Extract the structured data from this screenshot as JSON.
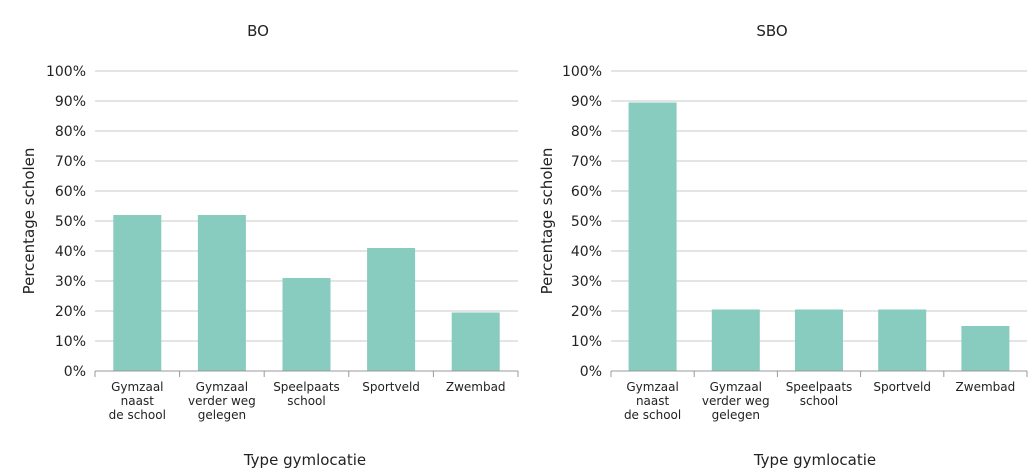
{
  "chart_data": [
    {
      "type": "bar",
      "title": "BO",
      "xlabel": "Type gymlocatie",
      "ylabel": "Percentage scholen",
      "ylim": [
        0,
        100
      ],
      "yticks": [
        "0%",
        "10%",
        "20%",
        "30%",
        "40%",
        "50%",
        "60%",
        "70%",
        "80%",
        "90%",
        "100%"
      ],
      "categories": [
        [
          "Gymzaal",
          "naast",
          "de school"
        ],
        [
          "Gymzaal",
          "verder weg",
          "gelegen"
        ],
        [
          "Speelpaats",
          "school"
        ],
        [
          "Sportveld"
        ],
        [
          "Zwembad"
        ]
      ],
      "values": [
        52,
        52,
        31,
        41,
        19.5
      ],
      "bar_color": "#88cbbf",
      "grid": true
    },
    {
      "type": "bar",
      "title": "SBO",
      "xlabel": "Type gymlocatie",
      "ylabel": "Percentage scholen",
      "ylim": [
        0,
        100
      ],
      "yticks": [
        "0%",
        "10%",
        "20%",
        "30%",
        "40%",
        "50%",
        "60%",
        "70%",
        "80%",
        "90%",
        "100%"
      ],
      "categories": [
        [
          "Gymzaal",
          "naast",
          "de school"
        ],
        [
          "Gymzaal",
          "verder weg",
          "gelegen"
        ],
        [
          "Speelpaats",
          "school"
        ],
        [
          "Sportveld"
        ],
        [
          "Zwembad"
        ]
      ],
      "values": [
        89.5,
        20.5,
        20.5,
        20.5,
        15
      ],
      "bar_color": "#88cbbf",
      "grid": true
    }
  ]
}
